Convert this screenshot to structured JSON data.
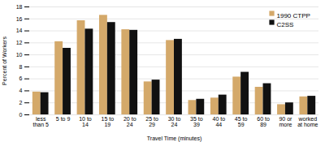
{
  "chart_data": {
    "type": "bar",
    "categories": [
      "less\nthan 5",
      "5 to 9",
      "10 to\n14",
      "15 to\n19",
      "20 to\n24",
      "25 to\n29",
      "30 to\n24",
      "35 to\n39",
      "40 to\n44",
      "45 to\n59",
      "60 to\n89",
      "90 or\nmore",
      "worked\nat home"
    ],
    "series": [
      {
        "name": "1990 CTPP",
        "color": "#d4a96a",
        "values": [
          3.8,
          12.2,
          15.7,
          16.6,
          14.2,
          5.5,
          12.4,
          2.4,
          2.8,
          6.3,
          4.6,
          1.7,
          3.0
        ]
      },
      {
        "name": "C2SS",
        "color": "#111111",
        "values": [
          3.7,
          11.1,
          14.3,
          15.4,
          14.1,
          5.8,
          12.6,
          2.6,
          3.3,
          7.1,
          5.2,
          2.0,
          3.1
        ]
      }
    ],
    "xlabel": "Travel Time (minutes)",
    "ylabel": "Percent of Workers",
    "ylim": [
      0,
      18
    ],
    "yticks": [
      0,
      2,
      4,
      6,
      8,
      10,
      12,
      14,
      16,
      18
    ],
    "grid": true,
    "legend": "upper right"
  }
}
